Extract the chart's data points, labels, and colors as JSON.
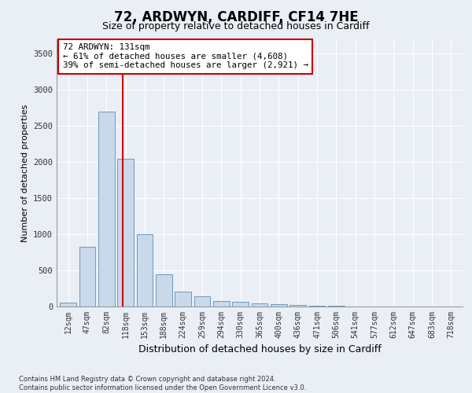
{
  "title": "72, ARDWYN, CARDIFF, CF14 7HE",
  "subtitle": "Size of property relative to detached houses in Cardiff",
  "xlabel": "Distribution of detached houses by size in Cardiff",
  "ylabel": "Number of detached properties",
  "footnote": "Contains HM Land Registry data © Crown copyright and database right 2024.\nContains public sector information licensed under the Open Government Licence v3.0.",
  "categories": [
    "12sqm",
    "47sqm",
    "82sqm",
    "118sqm",
    "153sqm",
    "188sqm",
    "224sqm",
    "259sqm",
    "294sqm",
    "330sqm",
    "365sqm",
    "400sqm",
    "436sqm",
    "471sqm",
    "506sqm",
    "541sqm",
    "577sqm",
    "612sqm",
    "647sqm",
    "683sqm",
    "718sqm"
  ],
  "bar_values": [
    55,
    830,
    2700,
    2050,
    1000,
    450,
    210,
    140,
    80,
    60,
    40,
    30,
    20,
    12,
    8,
    5,
    3,
    2,
    1,
    1,
    1
  ],
  "bar_color": "#c9d9ea",
  "bar_edge_color": "#5b8db8",
  "vline_color": "#cc0000",
  "vline_x": 2.87,
  "annotation_text": "72 ARDWYN: 131sqm\n← 61% of detached houses are smaller (4,608)\n39% of semi-detached houses are larger (2,921) →",
  "ylim": [
    0,
    3700
  ],
  "yticks": [
    0,
    500,
    1000,
    1500,
    2000,
    2500,
    3000,
    3500
  ],
  "bg_color": "#eaeff6",
  "grid_color": "#ffffff",
  "title_fontsize": 12,
  "subtitle_fontsize": 9,
  "xlabel_fontsize": 9,
  "ylabel_fontsize": 8
}
